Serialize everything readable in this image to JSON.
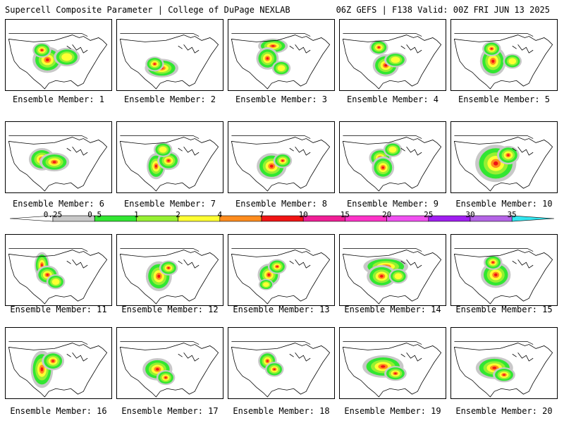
{
  "header": {
    "title_left": "Supercell Composite Parameter | College of DuPage NEXLAB",
    "title_right": "06Z GEFS | F138 Valid: 00Z FRI JUN 13 2025"
  },
  "colorbar": {
    "ticks": [
      "0.25",
      "0.5",
      "1",
      "2",
      "4",
      "7",
      "10",
      "15",
      "20",
      "25",
      "30",
      "35"
    ],
    "colors": [
      "#c8c8c8",
      "#32e632",
      "#96f032",
      "#ffff32",
      "#ff8c1e",
      "#f01414",
      "#f01e96",
      "#ff32c8",
      "#f050f0",
      "#a01ef0",
      "#b464e6",
      "#32e6f0"
    ]
  },
  "panels": [
    {
      "label": "Ensemble Member: 1"
    },
    {
      "label": "Ensemble Member: 2"
    },
    {
      "label": "Ensemble Member: 3"
    },
    {
      "label": "Ensemble Member: 4"
    },
    {
      "label": "Ensemble Member: 5"
    },
    {
      "label": "Ensemble Member: 6"
    },
    {
      "label": "Ensemble Member: 7"
    },
    {
      "label": "Ensemble Member: 8"
    },
    {
      "label": "Ensemble Member: 9"
    },
    {
      "label": "Ensemble Member: 10"
    },
    {
      "label": "Ensemble Member: 11"
    },
    {
      "label": "Ensemble Member: 12"
    },
    {
      "label": "Ensemble Member: 13"
    },
    {
      "label": "Ensemble Member: 14"
    },
    {
      "label": "Ensemble Member: 15"
    },
    {
      "label": "Ensemble Member: 16"
    },
    {
      "label": "Ensemble Member: 17"
    },
    {
      "label": "Ensemble Member: 18"
    },
    {
      "label": "Ensemble Member: 19"
    },
    {
      "label": "Ensemble Member: 20"
    }
  ]
}
